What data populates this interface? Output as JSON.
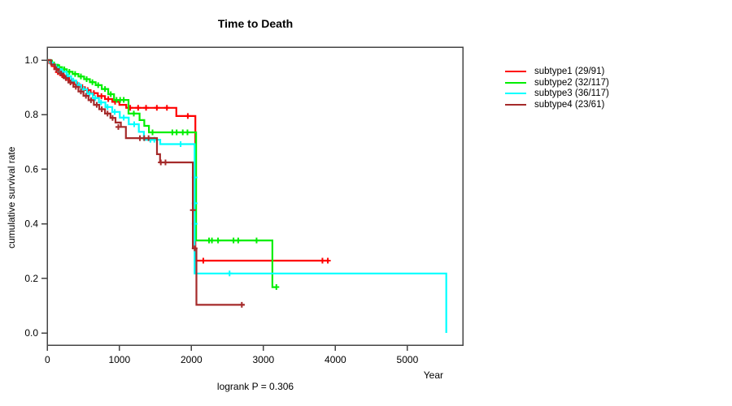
{
  "title": "Time to Death",
  "y_axis_label": "cumulative survival rate",
  "x_axis_label": "Year",
  "footer": "logrank P = 0.306",
  "colors": {
    "subtype1": "#FF0000",
    "subtype2": "#00EE00",
    "subtype3": "#00FFFF",
    "subtype4": "#A52A2A",
    "axis": "#444444",
    "text": "#000000"
  },
  "legend": {
    "items": [
      {
        "label": "subtype1 (29/91)",
        "color": "#FF0000"
      },
      {
        "label": "subtype2 (32/117)",
        "color": "#00EE00"
      },
      {
        "label": "subtype3 (36/117)",
        "color": "#00FFFF"
      },
      {
        "label": "subtype4 (23/61)",
        "color": "#A52A2A"
      }
    ]
  },
  "chart_data": {
    "type": "line",
    "subtype": "kaplan-meier-step-curves",
    "title": "Time to Death",
    "xlabel": "Year",
    "ylabel": "cumulative survival rate",
    "annotation": "logrank P = 0.306",
    "legend_position": "right-outside",
    "grid": false,
    "xlim": [
      0,
      5760
    ],
    "ylim": [
      0.0,
      1.0
    ],
    "x_ticks": [
      0,
      1000,
      2000,
      3000,
      4000,
      5000
    ],
    "y_ticks": [
      0.0,
      0.2,
      0.4,
      0.6,
      0.8,
      1.0
    ],
    "series": [
      {
        "name": "subtype1 (29/91)",
        "color": "#FF0000",
        "steps": [
          [
            0,
            1.0
          ],
          [
            25,
            0.989
          ],
          [
            60,
            0.978
          ],
          [
            95,
            0.967
          ],
          [
            130,
            0.956
          ],
          [
            175,
            0.945
          ],
          [
            235,
            0.934
          ],
          [
            300,
            0.923
          ],
          [
            370,
            0.912
          ],
          [
            445,
            0.901
          ],
          [
            520,
            0.89
          ],
          [
            600,
            0.879
          ],
          [
            700,
            0.868
          ],
          [
            800,
            0.857
          ],
          [
            900,
            0.847
          ],
          [
            1000,
            0.836
          ],
          [
            1095,
            0.825
          ],
          [
            1790,
            0.795
          ],
          [
            2055,
            0.265
          ],
          [
            3900,
            0.265
          ]
        ],
        "censors": [
          [
            145,
            0.956
          ],
          [
            205,
            0.945
          ],
          [
            265,
            0.934
          ],
          [
            335,
            0.923
          ],
          [
            410,
            0.912
          ],
          [
            485,
            0.901
          ],
          [
            560,
            0.89
          ],
          [
            645,
            0.879
          ],
          [
            750,
            0.868
          ],
          [
            845,
            0.857
          ],
          [
            940,
            0.847
          ],
          [
            1150,
            0.825
          ],
          [
            1260,
            0.825
          ],
          [
            1370,
            0.825
          ],
          [
            1520,
            0.825
          ],
          [
            1660,
            0.825
          ],
          [
            1950,
            0.795
          ],
          [
            2165,
            0.265
          ],
          [
            3820,
            0.265
          ],
          [
            3895,
            0.265
          ]
        ]
      },
      {
        "name": "subtype2 (32/117)",
        "color": "#00EE00",
        "steps": [
          [
            0,
            1.0
          ],
          [
            40,
            0.991
          ],
          [
            90,
            0.983
          ],
          [
            145,
            0.974
          ],
          [
            205,
            0.966
          ],
          [
            270,
            0.957
          ],
          [
            350,
            0.949
          ],
          [
            430,
            0.94
          ],
          [
            510,
            0.93
          ],
          [
            590,
            0.919
          ],
          [
            670,
            0.908
          ],
          [
            755,
            0.894
          ],
          [
            845,
            0.875
          ],
          [
            925,
            0.854
          ],
          [
            1126,
            0.804
          ],
          [
            1280,
            0.78
          ],
          [
            1345,
            0.759
          ],
          [
            1410,
            0.735
          ],
          [
            2065,
            0.339
          ],
          [
            3125,
            0.168
          ],
          [
            3190,
            0.168
          ]
        ],
        "censors": [
          [
            65,
            0.991
          ],
          [
            165,
            0.974
          ],
          [
            235,
            0.966
          ],
          [
            305,
            0.957
          ],
          [
            385,
            0.949
          ],
          [
            465,
            0.94
          ],
          [
            545,
            0.93
          ],
          [
            625,
            0.919
          ],
          [
            705,
            0.908
          ],
          [
            800,
            0.894
          ],
          [
            880,
            0.875
          ],
          [
            960,
            0.854
          ],
          [
            1010,
            0.854
          ],
          [
            1060,
            0.854
          ],
          [
            1200,
            0.804
          ],
          [
            1460,
            0.735
          ],
          [
            1735,
            0.735
          ],
          [
            1795,
            0.735
          ],
          [
            1880,
            0.735
          ],
          [
            1945,
            0.735
          ],
          [
            2245,
            0.339
          ],
          [
            2285,
            0.339
          ],
          [
            2370,
            0.339
          ],
          [
            2585,
            0.339
          ],
          [
            2650,
            0.339
          ],
          [
            2905,
            0.339
          ],
          [
            3180,
            0.168
          ]
        ]
      },
      {
        "name": "subtype3 (36/117)",
        "color": "#00FFFF",
        "steps": [
          [
            0,
            1.0
          ],
          [
            35,
            0.991
          ],
          [
            75,
            0.983
          ],
          [
            115,
            0.974
          ],
          [
            155,
            0.966
          ],
          [
            205,
            0.957
          ],
          [
            265,
            0.941
          ],
          [
            330,
            0.925
          ],
          [
            400,
            0.909
          ],
          [
            470,
            0.893
          ],
          [
            550,
            0.877
          ],
          [
            630,
            0.861
          ],
          [
            715,
            0.845
          ],
          [
            805,
            0.828
          ],
          [
            900,
            0.81
          ],
          [
            1005,
            0.789
          ],
          [
            1130,
            0.765
          ],
          [
            1270,
            0.737
          ],
          [
            1340,
            0.708
          ],
          [
            1567,
            0.692
          ],
          [
            2045,
            0.218
          ],
          [
            5540,
            0.0
          ]
        ],
        "censors": [
          [
            180,
            0.957
          ],
          [
            285,
            0.941
          ],
          [
            360,
            0.925
          ],
          [
            435,
            0.909
          ],
          [
            505,
            0.893
          ],
          [
            585,
            0.877
          ],
          [
            665,
            0.861
          ],
          [
            745,
            0.845
          ],
          [
            835,
            0.828
          ],
          [
            935,
            0.81
          ],
          [
            1060,
            0.789
          ],
          [
            1205,
            0.765
          ],
          [
            1430,
            0.708
          ],
          [
            1485,
            0.708
          ],
          [
            1850,
            0.692
          ],
          [
            2045,
            0.57
          ],
          [
            2045,
            0.475
          ],
          [
            2045,
            0.4
          ],
          [
            2530,
            0.218
          ]
        ]
      },
      {
        "name": "subtype4 (23/61)",
        "color": "#A52A2A",
        "steps": [
          [
            0,
            1.0
          ],
          [
            50,
            0.984
          ],
          [
            105,
            0.967
          ],
          [
            160,
            0.951
          ],
          [
            225,
            0.934
          ],
          [
            290,
            0.918
          ],
          [
            360,
            0.902
          ],
          [
            430,
            0.885
          ],
          [
            500,
            0.869
          ],
          [
            570,
            0.853
          ],
          [
            645,
            0.836
          ],
          [
            720,
            0.82
          ],
          [
            800,
            0.804
          ],
          [
            875,
            0.788
          ],
          [
            945,
            0.771
          ],
          [
            1020,
            0.755
          ],
          [
            1090,
            0.714
          ],
          [
            1522,
            0.655
          ],
          [
            1565,
            0.625
          ],
          [
            2020,
            0.31
          ],
          [
            2070,
            0.103
          ],
          [
            2740,
            0.103
          ]
        ],
        "censors": [
          [
            125,
            0.967
          ],
          [
            190,
            0.951
          ],
          [
            255,
            0.934
          ],
          [
            320,
            0.918
          ],
          [
            395,
            0.902
          ],
          [
            465,
            0.885
          ],
          [
            535,
            0.869
          ],
          [
            605,
            0.853
          ],
          [
            685,
            0.836
          ],
          [
            755,
            0.82
          ],
          [
            835,
            0.804
          ],
          [
            905,
            0.788
          ],
          [
            985,
            0.755
          ],
          [
            1285,
            0.714
          ],
          [
            1345,
            0.714
          ],
          [
            1405,
            0.714
          ],
          [
            1575,
            0.625
          ],
          [
            1640,
            0.625
          ],
          [
            2020,
            0.45
          ],
          [
            2045,
            0.31
          ],
          [
            2700,
            0.103
          ]
        ]
      }
    ]
  }
}
